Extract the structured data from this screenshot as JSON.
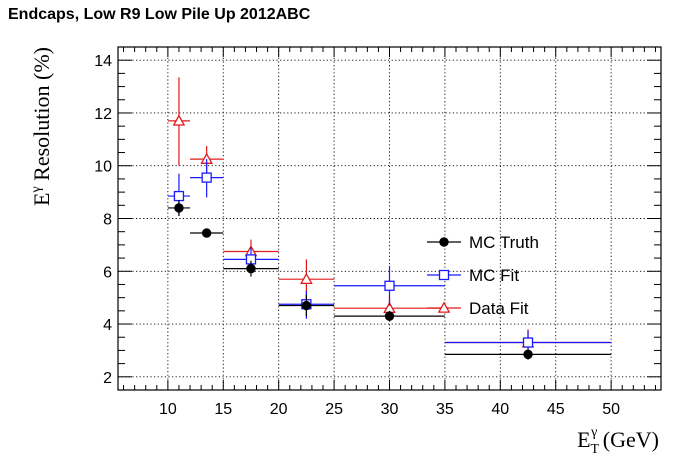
{
  "chart_data": {
    "type": "scatter",
    "title": "Endcaps,  Low R9 Low Pile Up 2012ABC",
    "xlabel": {
      "main": "E",
      "sub": "T",
      "sup": "γ",
      "rest": " (GeV)"
    },
    "ylabel": {
      "main": "E",
      "sup": "γ",
      "rest": " Resolution (%)"
    },
    "xlim": [
      5.5,
      54.5
    ],
    "ylim": [
      1.5,
      14.5
    ],
    "xticks": [
      10,
      15,
      20,
      25,
      30,
      35,
      40,
      45,
      50
    ],
    "yticks": [
      2,
      4,
      6,
      8,
      10,
      12,
      14
    ],
    "grid": true,
    "legend_position": "right",
    "series": [
      {
        "name": "MC Truth",
        "color": "#000000",
        "marker": "filled-circle",
        "points": [
          {
            "x": 11.0,
            "y": 8.4,
            "xlo": 10,
            "xhi": 12,
            "ylo": 8.1,
            "yhi": 8.7
          },
          {
            "x": 13.5,
            "y": 7.45,
            "xlo": 12,
            "xhi": 15,
            "ylo": 7.35,
            "yhi": 7.55
          },
          {
            "x": 17.5,
            "y": 6.1,
            "xlo": 15,
            "xhi": 20,
            "ylo": 5.8,
            "yhi": 6.4
          },
          {
            "x": 22.5,
            "y": 4.7,
            "xlo": 20,
            "xhi": 25,
            "ylo": 4.3,
            "yhi": 5.1
          },
          {
            "x": 30.0,
            "y": 4.3,
            "xlo": 25,
            "xhi": 35,
            "ylo": 4.1,
            "yhi": 4.5
          },
          {
            "x": 42.5,
            "y": 2.85,
            "xlo": 35,
            "xhi": 50,
            "ylo": 2.65,
            "yhi": 3.05
          }
        ]
      },
      {
        "name": "MC Fit",
        "color": "#1a1aff",
        "marker": "open-square",
        "points": [
          {
            "x": 11.0,
            "y": 8.85,
            "xlo": 10,
            "xhi": 12,
            "ylo": 8.1,
            "yhi": 9.7
          },
          {
            "x": 13.5,
            "y": 9.55,
            "xlo": 12,
            "xhi": 15,
            "ylo": 8.8,
            "yhi": 10.25
          },
          {
            "x": 17.5,
            "y": 6.45,
            "xlo": 15,
            "xhi": 20,
            "ylo": 5.95,
            "yhi": 6.9
          },
          {
            "x": 22.5,
            "y": 4.75,
            "xlo": 20,
            "xhi": 25,
            "ylo": 4.2,
            "yhi": 5.25
          },
          {
            "x": 30.0,
            "y": 5.45,
            "xlo": 25,
            "xhi": 35,
            "ylo": 4.7,
            "yhi": 6.2
          },
          {
            "x": 42.5,
            "y": 3.3,
            "xlo": 35,
            "xhi": 50,
            "ylo": 2.85,
            "yhi": 3.75
          }
        ]
      },
      {
        "name": "Data Fit",
        "color": "#e01a1a",
        "marker": "open-triangle",
        "points": [
          {
            "x": 11.0,
            "y": 11.7,
            "xlo": 10,
            "xhi": 12,
            "ylo": 10.0,
            "yhi": 13.35
          },
          {
            "x": 13.5,
            "y": 10.25,
            "xlo": 12,
            "xhi": 15,
            "ylo": 9.7,
            "yhi": 10.75
          },
          {
            "x": 17.5,
            "y": 6.75,
            "xlo": 15,
            "xhi": 20,
            "ylo": 6.25,
            "yhi": 7.2
          },
          {
            "x": 22.5,
            "y": 5.7,
            "xlo": 20,
            "xhi": 25,
            "ylo": 4.95,
            "yhi": 6.45
          },
          {
            "x": 30.0,
            "y": 4.6,
            "xlo": 25,
            "xhi": 35,
            "ylo": 4.15,
            "yhi": 5.05
          },
          {
            "x": 42.5,
            "y": 3.3,
            "xlo": 35,
            "xhi": 50,
            "ylo": 2.85,
            "yhi": 3.8
          }
        ]
      }
    ]
  }
}
